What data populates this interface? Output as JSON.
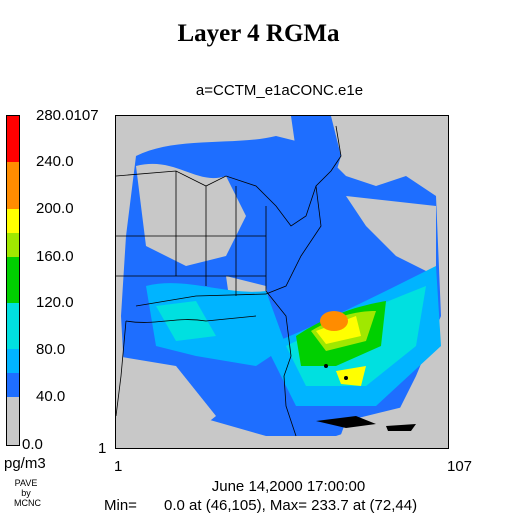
{
  "title": "Layer 4  RGMa",
  "subtitle": "a=CCTM_e1aCONC.e1e",
  "legend": {
    "ticks": [
      "280.0107",
      "240.0",
      "200.0",
      "160.0",
      "120.0",
      "80.0",
      "40.0",
      "0.0"
    ],
    "unit": "pg/m3",
    "colors": [
      "#ff0000",
      "#ff8c00",
      "#ffff00",
      "#a0e800",
      "#00d000",
      "#00e0e0",
      "#00b4ff",
      "#1e6eff",
      "#c8c8c8"
    ]
  },
  "axes": {
    "y_min_label": "1",
    "x_min_label": "1",
    "x_max_label": "107"
  },
  "footer": {
    "credit_line1": "PAVE",
    "credit_line2": "by",
    "credit_line3": "MCNC",
    "timestamp": "June 14,2000 17:00:00",
    "min_label": "Min=",
    "stats": "0.0 at (46,105), Max=  233.7 at (72,44)"
  }
}
